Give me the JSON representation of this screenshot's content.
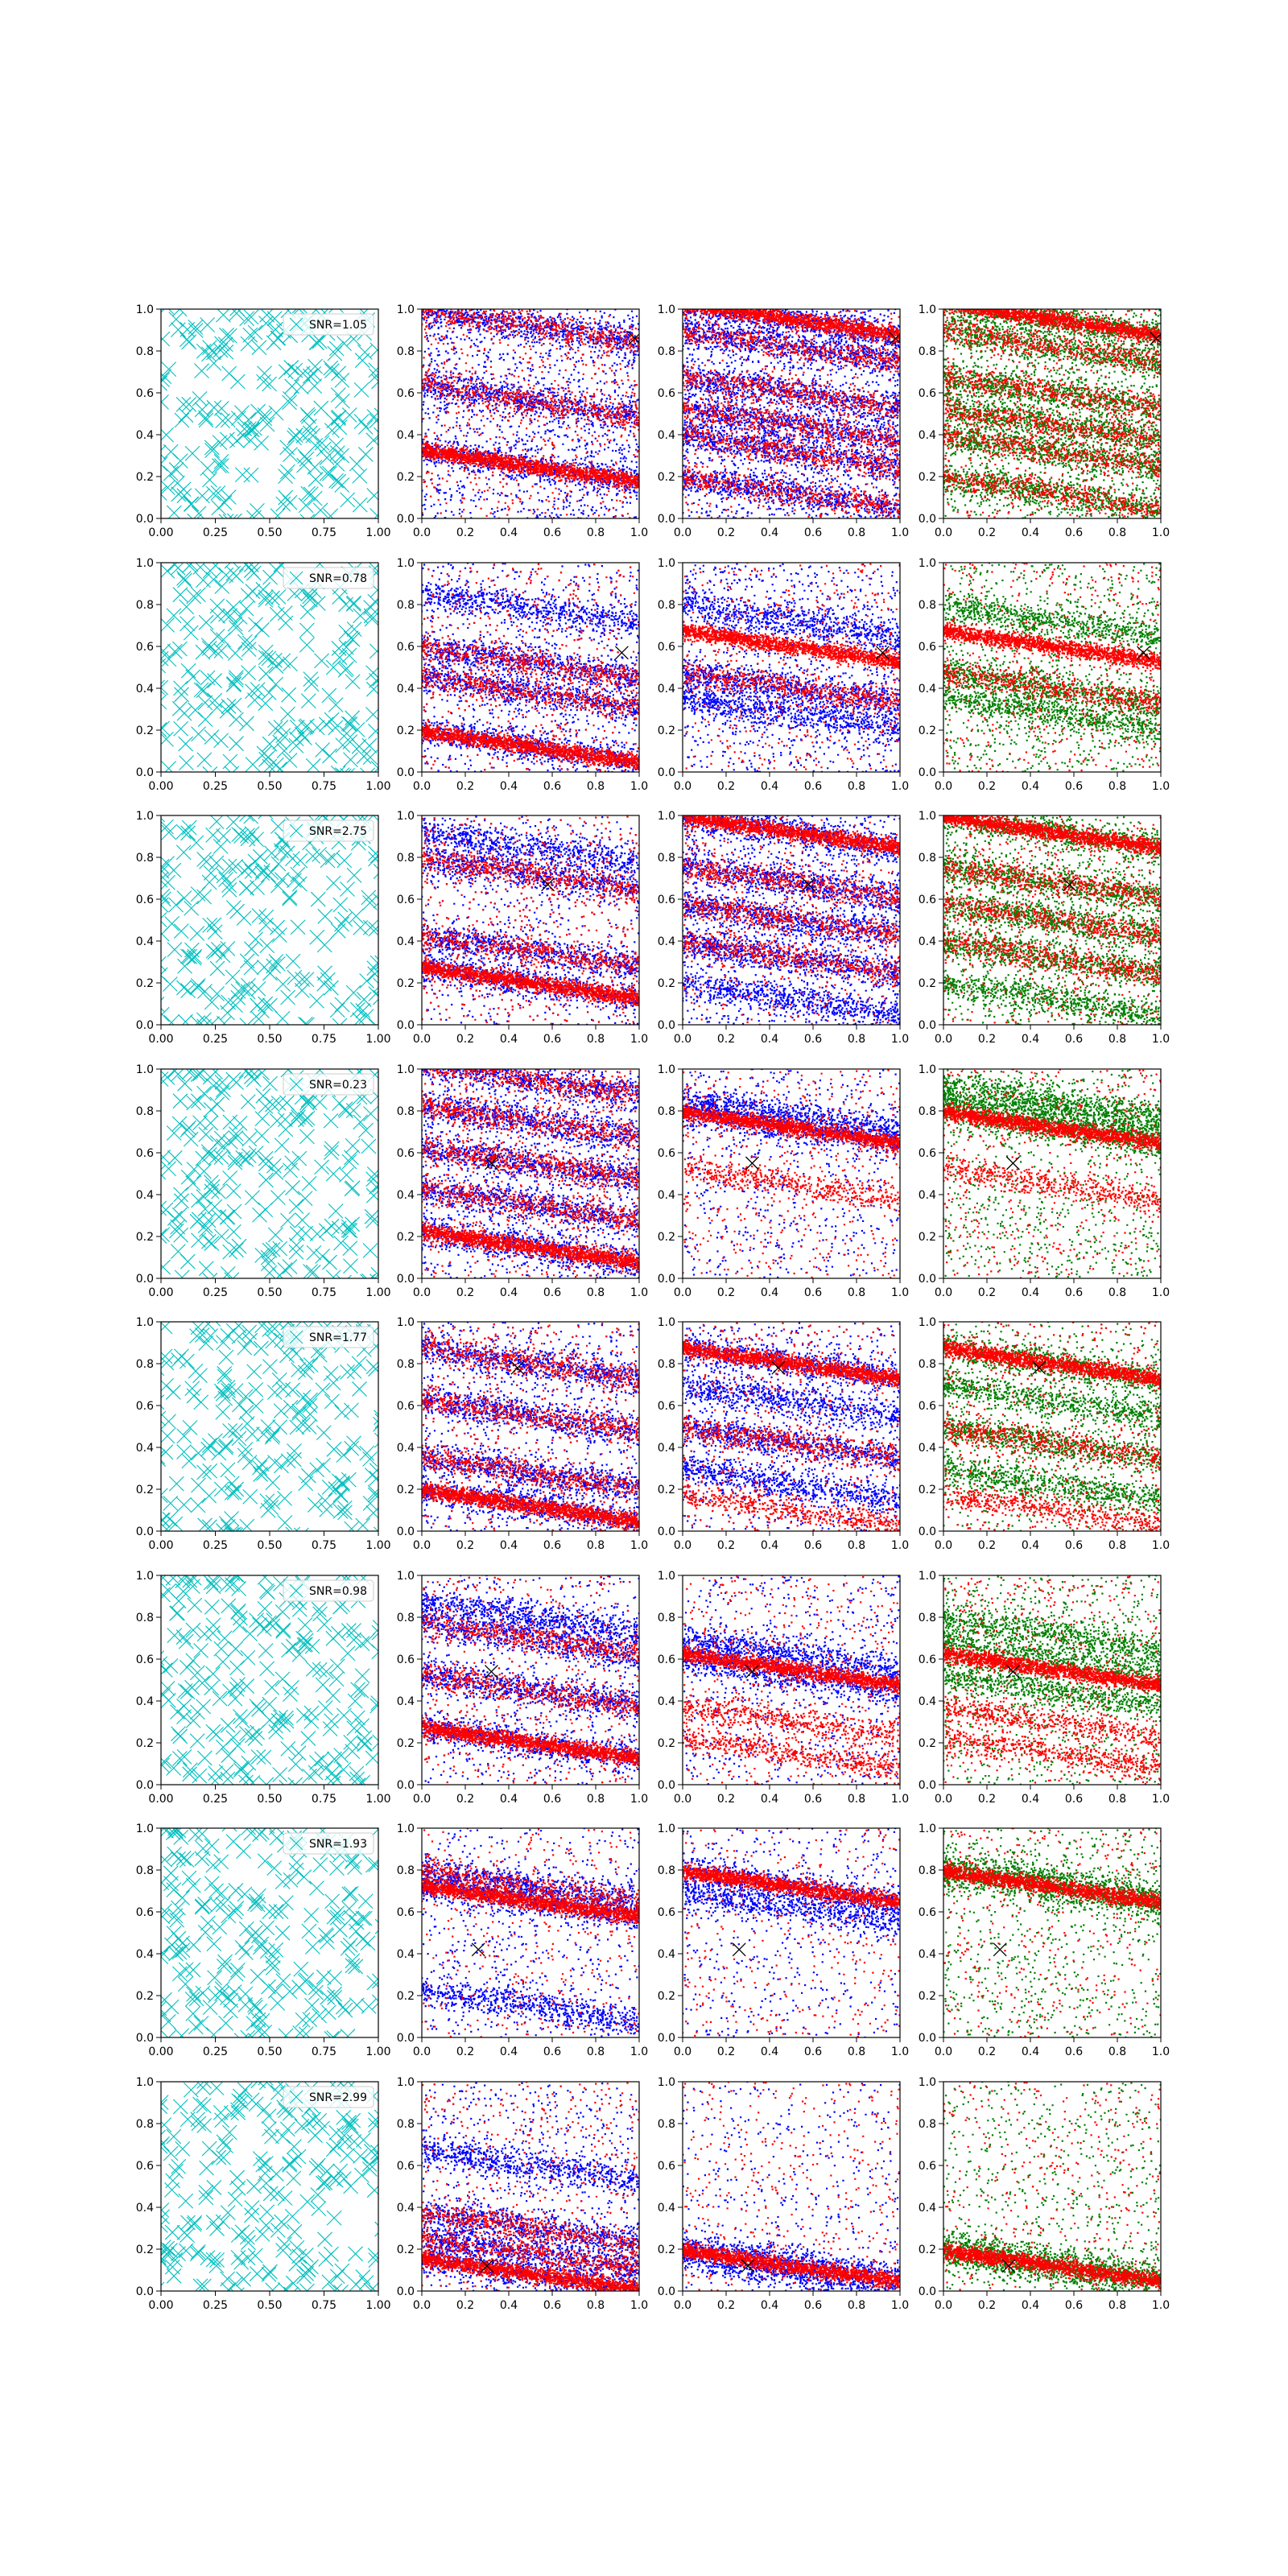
{
  "figure": {
    "rows": 8,
    "cols": 4,
    "colors": {
      "cross_scatter": "#00bfbf",
      "red": "#ff0000",
      "blue": "#0000ff",
      "green": "#008000",
      "marker": "#000000",
      "axis": "#000000"
    },
    "axis": {
      "xlim": [
        0,
        1
      ],
      "ylim": [
        0,
        1
      ],
      "col1_xticks": [
        "0.00",
        "0.25",
        "0.50",
        "0.75",
        "1.00"
      ],
      "col1_xtick_values": [
        0,
        0.25,
        0.5,
        0.75,
        1.0
      ],
      "other_xticks": [
        "0.0",
        "0.2",
        "0.4",
        "0.6",
        "0.8",
        "1.0"
      ],
      "other_xtick_values": [
        0,
        0.2,
        0.4,
        0.6,
        0.8,
        1.0
      ],
      "yticks": [
        "0.0",
        "0.2",
        "0.4",
        "0.6",
        "0.8",
        "1.0"
      ],
      "ytick_values": [
        0,
        0.2,
        0.4,
        0.6,
        0.8,
        1.0
      ]
    }
  },
  "chart_data": [
    {
      "type": "scatter",
      "row": 1,
      "snr_label": "SNR=1.05",
      "marker": [
        0.98,
        0.86
      ],
      "panels": {
        "col2": {
          "bands": [
            0.92,
            0.56,
            0.25
          ],
          "red_bands": [
            0.92,
            0.56,
            0.25
          ],
          "blue_fill": 0.6,
          "red_fill": 0.5
        },
        "col3": {
          "bands": [
            0.95,
            0.82,
            0.6,
            0.45,
            0.32,
            0.12
          ],
          "red_bands": [
            0.95,
            0.82,
            0.6,
            0.45,
            0.32,
            0.12
          ],
          "blue_fill": 0.6,
          "red_fill": 0.3
        },
        "col4": {
          "bands": [
            0.95,
            0.82,
            0.6,
            0.45,
            0.32,
            0.12
          ],
          "red_bands": [
            0.95,
            0.82,
            0.6,
            0.45,
            0.32,
            0.12
          ],
          "green_fill": 0.6,
          "red_fill": 0.3
        }
      }
    },
    {
      "type": "scatter",
      "row": 2,
      "snr_label": "SNR=0.78",
      "marker": [
        0.92,
        0.57
      ],
      "panels": {
        "col2": {
          "bands": [
            0.78,
            0.52,
            0.38,
            0.12
          ],
          "red_bands": [
            0.52,
            0.38,
            0.12
          ],
          "blue_fill": 0.5,
          "red_fill": 0.4
        },
        "col3": {
          "bands": [
            0.72,
            0.4,
            0.28
          ],
          "red_bands": [
            0.6,
            0.4
          ],
          "blue_fill": 0.5,
          "red_fill": 0.4
        },
        "col4": {
          "bands": [
            0.72,
            0.4,
            0.28
          ],
          "red_bands": [
            0.6,
            0.4
          ],
          "green_fill": 0.5,
          "red_fill": 0.4
        }
      }
    },
    {
      "type": "scatter",
      "row": 3,
      "snr_label": "SNR=2.75",
      "marker": [
        0.58,
        0.67
      ],
      "panels": {
        "col2": {
          "bands": [
            0.85,
            0.72,
            0.35,
            0.2
          ],
          "red_bands": [
            0.72,
            0.35,
            0.2
          ],
          "blue_fill": 0.5,
          "red_fill": 0.5
        },
        "col3": {
          "bands": [
            0.92,
            0.68,
            0.5,
            0.32,
            0.12
          ],
          "red_bands": [
            0.92,
            0.68,
            0.5,
            0.32
          ],
          "blue_fill": 0.5,
          "red_fill": 0.4
        },
        "col4": {
          "bands": [
            0.92,
            0.68,
            0.5,
            0.32,
            0.12
          ],
          "red_bands": [
            0.92,
            0.68,
            0.5,
            0.32
          ],
          "green_fill": 0.5,
          "red_fill": 0.4
        }
      }
    },
    {
      "type": "scatter",
      "row": 4,
      "snr_label": "SNR=0.23",
      "marker": [
        0.32,
        0.55
      ],
      "panels": {
        "col2": {
          "bands": [
            0.95,
            0.75,
            0.55,
            0.35,
            0.15
          ],
          "red_bands": [
            0.95,
            0.75,
            0.55,
            0.35,
            0.15
          ],
          "blue_fill": 0.4,
          "red_fill": 0.5
        },
        "col3": {
          "bands": [
            0.78,
            0.72
          ],
          "red_bands": [
            0.72,
            0.45
          ],
          "blue_fill": 0.3,
          "red_fill": 0.4
        },
        "col4": {
          "bands": [
            0.85,
            0.78,
            0.72
          ],
          "red_bands": [
            0.72,
            0.45
          ],
          "green_fill": 0.4,
          "red_fill": 0.4
        }
      }
    },
    {
      "type": "scatter",
      "row": 5,
      "snr_label": "SNR=1.77",
      "marker": [
        0.44,
        0.78
      ],
      "panels": {
        "col2": {
          "bands": [
            0.8,
            0.55,
            0.28,
            0.12
          ],
          "red_bands": [
            0.8,
            0.55,
            0.28,
            0.12
          ],
          "blue_fill": 0.5,
          "red_fill": 0.4
        },
        "col3": {
          "bands": [
            0.8,
            0.62,
            0.42,
            0.22
          ],
          "red_bands": [
            0.8,
            0.42,
            0.1
          ],
          "blue_fill": 0.5,
          "red_fill": 0.4
        },
        "col4": {
          "bands": [
            0.8,
            0.62,
            0.42,
            0.22
          ],
          "red_bands": [
            0.8,
            0.42,
            0.1
          ],
          "green_fill": 0.5,
          "red_fill": 0.4
        }
      }
    },
    {
      "type": "scatter",
      "row": 6,
      "snr_label": "SNR=0.98",
      "marker": [
        0.32,
        0.54
      ],
      "panels": {
        "col2": {
          "bands": [
            0.8,
            0.7,
            0.45,
            0.2
          ],
          "red_bands": [
            0.7,
            0.45,
            0.2
          ],
          "blue_fill": 0.4,
          "red_fill": 0.4
        },
        "col3": {
          "bands": [
            0.62,
            0.52
          ],
          "red_bands": [
            0.55,
            0.3,
            0.15
          ],
          "blue_fill": 0.35,
          "red_fill": 0.4
        },
        "col4": {
          "bands": [
            0.72,
            0.6,
            0.45
          ],
          "red_bands": [
            0.55,
            0.3,
            0.15
          ],
          "green_fill": 0.4,
          "red_fill": 0.4
        }
      }
    },
    {
      "type": "scatter",
      "row": 7,
      "snr_label": "SNR=1.93",
      "marker": [
        0.26,
        0.42
      ],
      "panels": {
        "col2": {
          "bands": [
            0.72,
            0.65,
            0.15
          ],
          "red_bands": [
            0.72,
            0.65
          ],
          "blue_fill": 0.3,
          "red_fill": 0.3
        },
        "col3": {
          "bands": [
            0.72,
            0.62
          ],
          "red_bands": [
            0.72
          ],
          "blue_fill": 0.25,
          "red_fill": 0.3
        },
        "col4": {
          "bands": [
            0.75,
            0.7
          ],
          "red_bands": [
            0.72
          ],
          "green_fill": 0.4,
          "red_fill": 0.3
        }
      }
    },
    {
      "type": "scatter",
      "row": 8,
      "snr_label": "SNR=2.99",
      "marker": [
        0.3,
        0.12
      ],
      "panels": {
        "col2": {
          "bands": [
            0.6,
            0.3,
            0.18,
            0.08
          ],
          "red_bands": [
            0.3,
            0.18,
            0.08
          ],
          "blue_fill": 0.4,
          "red_fill": 0.4
        },
        "col3": {
          "bands": [
            0.14,
            0.08
          ],
          "red_bands": [
            0.12
          ],
          "blue_fill": 0.2,
          "red_fill": 0.3
        },
        "col4": {
          "bands": [
            0.15,
            0.1
          ],
          "red_bands": [
            0.12
          ],
          "green_fill": 0.3,
          "red_fill": 0.3
        }
      }
    }
  ]
}
